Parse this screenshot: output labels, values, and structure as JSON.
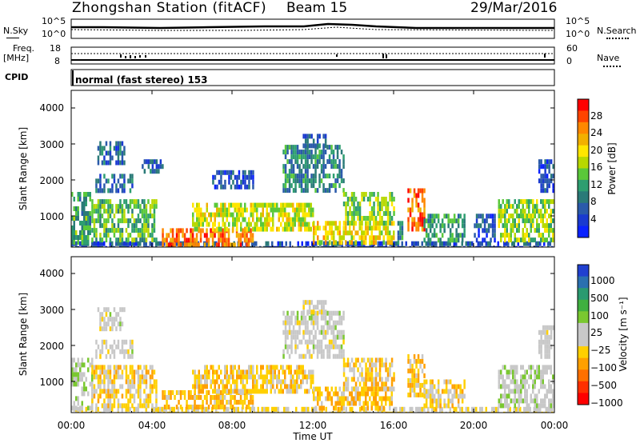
{
  "header": {
    "station": "Zhongshan Station (fitACF)",
    "beam": "Beam 15",
    "date": "29/Mar/2016"
  },
  "top_panels": {
    "nsky_label": "N.Sky",
    "nsky_left_ticks": [
      "10^5",
      "10^0"
    ],
    "nsky_right_ticks": [
      "10^5",
      "10^0"
    ],
    "nsearch_label": "N.Search",
    "freq_label_1": "Freq.",
    "freq_label_2": "[MHz]",
    "freq_left_ticks": [
      "18",
      "8"
    ],
    "nave_right_ticks": [
      "60",
      "0"
    ],
    "nave_label": "Nave",
    "cpid_label": "CPID",
    "cpid_value": "normal (fast stereo) 153"
  },
  "axes": {
    "ylabel": "Slant Range [km]",
    "yticks": [
      "4000",
      "3000",
      "2000",
      "1000"
    ],
    "xticks": [
      "00:00",
      "04:00",
      "08:00",
      "12:00",
      "16:00",
      "20:00",
      "00:00"
    ],
    "xlabel": "Time UT"
  },
  "power_colorbar": {
    "label": "Power [dB]",
    "ticks": [
      "28",
      "24",
      "20",
      "16",
      "12",
      "8",
      "4"
    ],
    "colors": [
      "#ff0000",
      "#ff4400",
      "#ff8800",
      "#f2b000",
      "#ffe600",
      "#b8d800",
      "#5ac83a",
      "#2e9e70",
      "#2a7a78",
      "#2a5aaa",
      "#1a3ad0",
      "#0a22ff"
    ]
  },
  "velocity_colorbar": {
    "label": "Velocity [m s⁻¹]",
    "ticks": [
      "1000",
      "500",
      "100",
      "25",
      "−25",
      "−100",
      "−500",
      "−1000"
    ],
    "colors": [
      "#2040d0",
      "#2a70b0",
      "#2a9a70",
      "#40b040",
      "#7ac830",
      "#c8c8c8",
      "#c8c8c8",
      "#ffd000",
      "#ffa000",
      "#ff7000",
      "#ff3000",
      "#ff0000"
    ]
  },
  "chart_data": [
    {
      "type": "heatmap",
      "name": "Power",
      "x_unit": "hours UT",
      "xlim": [
        0,
        24
      ],
      "ylim": [
        180,
        4500
      ],
      "ylabel": "Slant Range [km]",
      "colorbar_label": "Power [dB]",
      "colorbar_range": [
        0,
        32
      ],
      "regions": [
        {
          "t": [
            0.0,
            24.0
          ],
          "r": [
            200,
            340
          ],
          "v": 6
        },
        {
          "t": [
            0.0,
            0.9
          ],
          "r": [
            340,
            1700
          ],
          "v": 12
        },
        {
          "t": [
            1.0,
            4.2
          ],
          "r": [
            350,
            1500
          ],
          "v": 14
        },
        {
          "t": [
            1.2,
            3.0
          ],
          "r": [
            1700,
            2200
          ],
          "v": 8
        },
        {
          "t": [
            1.3,
            2.6
          ],
          "r": [
            2500,
            3100
          ],
          "v": 7
        },
        {
          "t": [
            3.5,
            4.5
          ],
          "r": [
            2300,
            2600
          ],
          "v": 7
        },
        {
          "t": [
            4.5,
            9.0
          ],
          "r": [
            300,
            700
          ],
          "v": 26
        },
        {
          "t": [
            6.0,
            12.0
          ],
          "r": [
            700,
            1400
          ],
          "v": 18
        },
        {
          "t": [
            10.5,
            13.5
          ],
          "r": [
            1800,
            3000
          ],
          "v": 10
        },
        {
          "t": [
            11.5,
            12.6
          ],
          "r": [
            3000,
            3300
          ],
          "v": 7
        },
        {
          "t": [
            7.0,
            9.0
          ],
          "r": [
            1800,
            2300
          ],
          "v": 6
        },
        {
          "t": [
            12.0,
            16.0
          ],
          "r": [
            350,
            900
          ],
          "v": 20
        },
        {
          "t": [
            13.5,
            16.0
          ],
          "r": [
            900,
            1700
          ],
          "v": 16
        },
        {
          "t": [
            16.2,
            16.4
          ],
          "r": [
            300,
            900
          ],
          "v": 10
        },
        {
          "t": [
            16.7,
            17.5
          ],
          "r": [
            700,
            1800
          ],
          "v": 27
        },
        {
          "t": [
            17.5,
            19.5
          ],
          "r": [
            350,
            1100
          ],
          "v": 12
        },
        {
          "t": [
            20.0,
            21.0
          ],
          "r": [
            400,
            1100
          ],
          "v": 6
        },
        {
          "t": [
            21.2,
            24.0
          ],
          "r": [
            400,
            1500
          ],
          "v": 16
        },
        {
          "t": [
            23.2,
            24.0
          ],
          "r": [
            1800,
            2600
          ],
          "v": 6
        }
      ]
    },
    {
      "type": "heatmap",
      "name": "Velocity",
      "x_unit": "hours UT",
      "xlim": [
        0,
        24
      ],
      "ylim": [
        180,
        4500
      ],
      "ylabel": "Slant Range [km]",
      "colorbar_label": "Velocity [m s⁻¹]",
      "colorbar_range": [
        -1000,
        1000
      ],
      "regions": [
        {
          "t": [
            0.0,
            24.0
          ],
          "r": [
            200,
            340
          ],
          "v": -150
        },
        {
          "t": [
            0.0,
            1.0
          ],
          "r": [
            340,
            1700
          ],
          "v": 80
        },
        {
          "t": [
            1.0,
            4.2
          ],
          "r": [
            350,
            1500
          ],
          "v": -200
        },
        {
          "t": [
            1.2,
            3.0
          ],
          "r": [
            1700,
            2200
          ],
          "v": 0
        },
        {
          "t": [
            1.3,
            2.6
          ],
          "r": [
            2500,
            3100
          ],
          "v": 0
        },
        {
          "t": [
            4.5,
            9.0
          ],
          "r": [
            300,
            800
          ],
          "v": -300
        },
        {
          "t": [
            6.0,
            12.0
          ],
          "r": [
            800,
            1500
          ],
          "v": -250
        },
        {
          "t": [
            10.5,
            13.5
          ],
          "r": [
            1800,
            3000
          ],
          "v": 0
        },
        {
          "t": [
            11.5,
            12.6
          ],
          "r": [
            3000,
            3300
          ],
          "v": -60
        },
        {
          "t": [
            12.0,
            16.0
          ],
          "r": [
            350,
            900
          ],
          "v": -300
        },
        {
          "t": [
            13.5,
            16.0
          ],
          "r": [
            900,
            1700
          ],
          "v": -250
        },
        {
          "t": [
            16.7,
            17.5
          ],
          "r": [
            700,
            1800
          ],
          "v": -300
        },
        {
          "t": [
            17.5,
            19.5
          ],
          "r": [
            350,
            1100
          ],
          "v": -200
        },
        {
          "t": [
            21.2,
            24.0
          ],
          "r": [
            400,
            1500
          ],
          "v": 60
        },
        {
          "t": [
            23.2,
            24.0
          ],
          "r": [
            1800,
            2600
          ],
          "v": 0
        }
      ]
    }
  ]
}
